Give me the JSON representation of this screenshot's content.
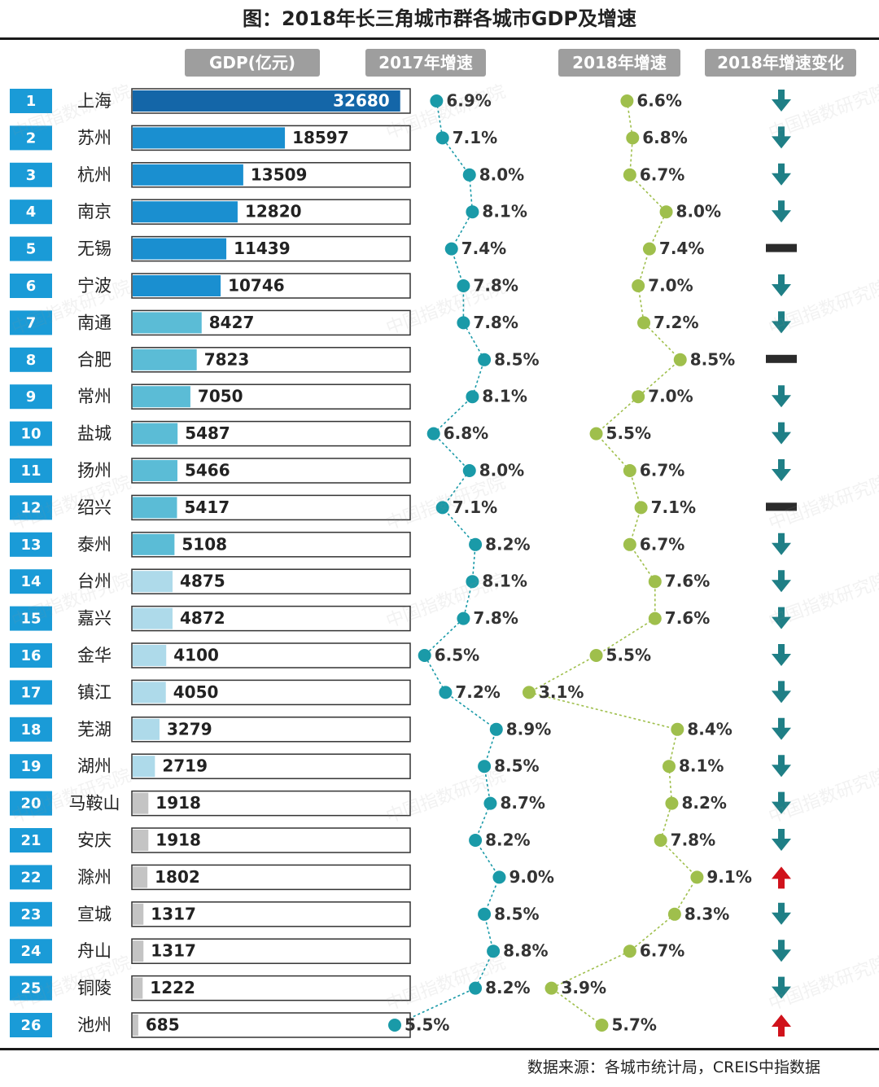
{
  "title": "图：2018年长三角城市群各城市GDP及增速",
  "headers": {
    "gdp": "GDP(亿元)",
    "g2017": "2017年增速",
    "g2018": "2018年增速",
    "change": "2018年增速变化"
  },
  "source": "数据来源：各城市统计局，CREIS中指数据",
  "watermark": "中国指数研究院",
  "colors": {
    "rank_box": "#1a9bd7",
    "bar_dark": "#1466a8",
    "bar_mid": "#1a8fd0",
    "bar_light": "#5bbcd6",
    "bar_pale": "#aedaea",
    "bar_grey": "#c4c4c4",
    "line_2017": "#1a9aa8",
    "line_2018": "#9fbf4c",
    "arrow_down": "#1f7f86",
    "arrow_up": "#d0121b",
    "flat": "#2b2b2b"
  },
  "chart_data": {
    "type": "bar",
    "title": "图：2018年长三角城市群各城市GDP及增速",
    "xlabel": "",
    "ylabel": "GDP(亿元)",
    "categories": [
      "上海",
      "苏州",
      "杭州",
      "南京",
      "无锡",
      "宁波",
      "南通",
      "合肥",
      "常州",
      "盐城",
      "扬州",
      "绍兴",
      "泰州",
      "台州",
      "嘉兴",
      "金华",
      "镇江",
      "芜湖",
      "湖州",
      "马鞍山",
      "安庆",
      "滁州",
      "宣城",
      "舟山",
      "铜陵",
      "池州"
    ],
    "ranks": [
      "1",
      "2",
      "3",
      "4",
      "5",
      "6",
      "7",
      "8",
      "9",
      "10",
      "11",
      "12",
      "13",
      "14",
      "15",
      "16",
      "17",
      "18",
      "19",
      "20",
      "21",
      "22",
      "23",
      "24",
      "25",
      "26"
    ],
    "gdp": [
      32680,
      18597,
      13509,
      12820,
      11439,
      10746,
      8427,
      7823,
      7050,
      5487,
      5466,
      5417,
      5108,
      4875,
      4872,
      4100,
      4050,
      3279,
      2719,
      1918,
      1918,
      1802,
      1317,
      1317,
      1222,
      685
    ],
    "gdp_max": 34000,
    "growth_2017": [
      6.9,
      7.1,
      8.0,
      8.1,
      7.4,
      7.8,
      7.8,
      8.5,
      8.1,
      6.8,
      8.0,
      7.1,
      8.2,
      8.1,
      7.8,
      6.5,
      7.2,
      8.9,
      8.5,
      8.7,
      8.2,
      9.0,
      8.5,
      8.8,
      8.2,
      5.5
    ],
    "growth_2018": [
      6.6,
      6.8,
      6.7,
      8.0,
      7.4,
      7.0,
      7.2,
      8.5,
      7.0,
      5.5,
      6.7,
      7.1,
      6.7,
      7.6,
      7.6,
      5.5,
      3.1,
      8.4,
      8.1,
      8.2,
      7.8,
      9.1,
      8.3,
      6.7,
      3.9,
      5.7
    ],
    "growth_2017_labels": [
      "6.9%",
      "7.1%",
      "8.0%",
      "8.1%",
      "7.4%",
      "7.8%",
      "7.8%",
      "8.5%",
      "8.1%",
      "6.8%",
      "8.0%",
      "7.1%",
      "8.2%",
      "8.1%",
      "7.8%",
      "6.5%",
      "7.2%",
      "8.9%",
      "8.5%",
      "8.7%",
      "8.2%",
      "9.0%",
      "8.5%",
      "8.8%",
      "8.2%",
      "5.5%"
    ],
    "growth_2018_labels": [
      "6.6%",
      "6.8%",
      "6.7%",
      "8.0%",
      "7.4%",
      "7.0%",
      "7.2%",
      "8.5%",
      "7.0%",
      "5.5%",
      "6.7%",
      "7.1%",
      "6.7%",
      "7.6%",
      "7.6%",
      "5.5%",
      "3.1%",
      "8.4%",
      "8.1%",
      "8.2%",
      "7.8%",
      "9.1%",
      "8.3%",
      "6.7%",
      "3.9%",
      "5.7%"
    ],
    "change_2018": [
      "down",
      "down",
      "down",
      "down",
      "flat",
      "down",
      "down",
      "flat",
      "down",
      "down",
      "down",
      "flat",
      "down",
      "down",
      "down",
      "down",
      "down",
      "down",
      "down",
      "down",
      "down",
      "up",
      "down",
      "down",
      "down",
      "up"
    ]
  }
}
